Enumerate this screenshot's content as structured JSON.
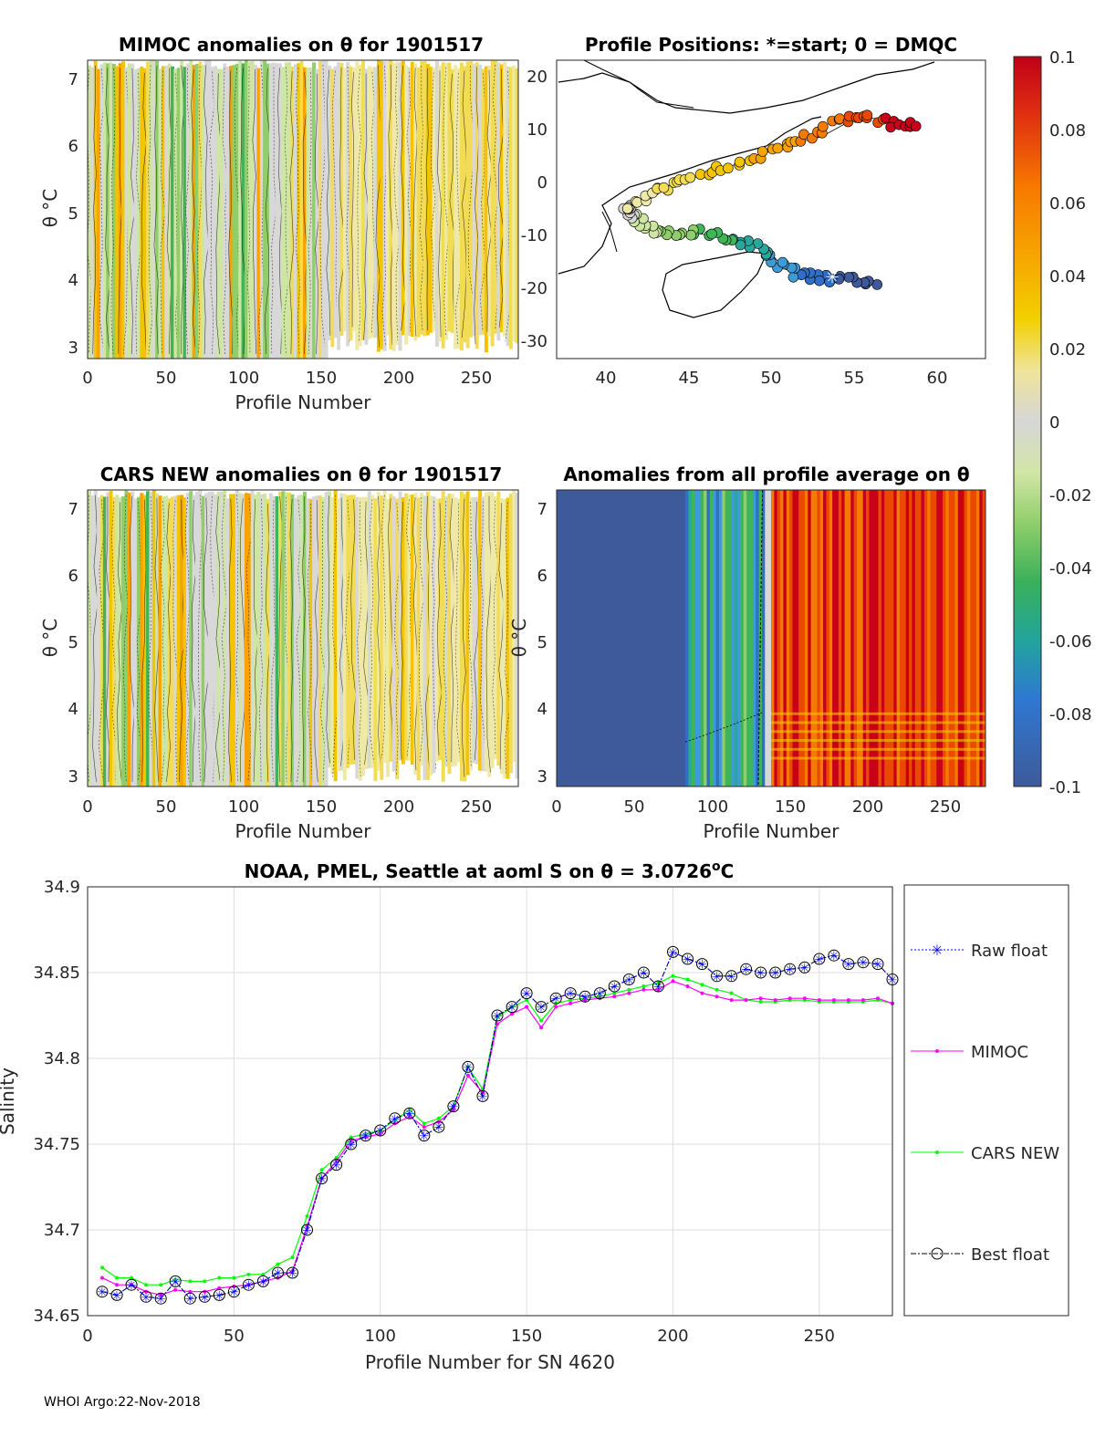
{
  "footer": "WHOI Argo:22-Nov-2018",
  "colors": {
    "raw": "#0000ff",
    "mimoc": "#ff00ff",
    "cars": "#00ff00",
    "best": "#000000",
    "colormap": [
      "#3e5a9a",
      "#2f6fc7",
      "#3d9bd6",
      "#2aa79b",
      "#3fb55a",
      "#8fce6a",
      "#cfe6a3",
      "#d8d8d8",
      "#efe9a8",
      "#f3dc55",
      "#f3c500",
      "#f8a300",
      "#f57a00",
      "#ea4a00",
      "#c8001a"
    ]
  },
  "charts": {
    "mimoc": {
      "title": "MIMOC anomalies on θ  for 1901517",
      "xlabel": "Profile Number",
      "ylabel": "θ °C",
      "xticks": [
        "0",
        "50",
        "100",
        "150",
        "200",
        "250"
      ],
      "yticks": [
        "3",
        "4",
        "5",
        "6",
        "7"
      ]
    },
    "positions": {
      "title": "Profile Positions: *=start; 0 = DMQC",
      "xticks": [
        "40",
        "45",
        "50",
        "55",
        "60"
      ],
      "yticks": [
        "20",
        "10",
        "0",
        "-10",
        "-20",
        "-30"
      ]
    },
    "cars": {
      "title": "CARS NEW anomalies on θ for 1901517",
      "xlabel": "Profile Number",
      "ylabel": "θ °C",
      "xticks": [
        "0",
        "50",
        "100",
        "150",
        "200",
        "250"
      ],
      "yticks": [
        "3",
        "4",
        "5",
        "6",
        "7"
      ]
    },
    "allavg": {
      "title": "Anomalies from all profile average on θ",
      "xlabel": "Profile Number",
      "ylabel": "θ °C",
      "xticks": [
        "0",
        "50",
        "100",
        "150",
        "200",
        "250"
      ],
      "yticks": [
        "3",
        "4",
        "5",
        "6",
        "7"
      ]
    },
    "colorbar": {
      "ticks": [
        "0.1",
        "0.08",
        "0.06",
        "0.04",
        "0.02",
        "0",
        "-0.02",
        "-0.04",
        "-0.06",
        "-0.08",
        "-0.1"
      ]
    }
  },
  "chart_data": {
    "type": "line",
    "title": "NOAA, PMEL, Seattle at aoml S on θ = 3.0726",
    "title_suffix": "o",
    "title_unit": "C",
    "xlabel": "Profile Number for SN 4620",
    "ylabel": "Salinity",
    "xlim": [
      0,
      275
    ],
    "ylim": [
      34.65,
      34.9
    ],
    "xticks": [
      "0",
      "50",
      "100",
      "150",
      "200",
      "250"
    ],
    "yticks": [
      "34.9",
      "34.85",
      "34.8",
      "34.75",
      "34.7",
      "34.65"
    ],
    "legend": [
      "Raw float",
      "MIMOC",
      "CARS NEW",
      "Best float"
    ],
    "legend_position": "right-outside",
    "series": [
      {
        "name": "Raw float / Best float",
        "x": [
          5,
          10,
          15,
          20,
          25,
          30,
          35,
          40,
          45,
          50,
          55,
          60,
          65,
          70,
          75,
          80,
          85,
          90,
          95,
          100,
          105,
          110,
          115,
          120,
          125,
          130,
          135,
          140,
          145,
          150,
          155,
          160,
          165,
          170,
          175,
          180,
          185,
          190,
          195,
          200,
          205,
          210,
          215,
          220,
          225,
          230,
          235,
          240,
          245,
          250,
          255,
          260,
          265,
          270,
          275
        ],
        "values": [
          34.664,
          34.662,
          34.668,
          34.661,
          34.66,
          34.67,
          34.66,
          34.661,
          34.662,
          34.664,
          34.668,
          34.67,
          34.675,
          34.675,
          34.7,
          34.73,
          34.738,
          34.75,
          34.755,
          34.758,
          34.765,
          34.768,
          34.755,
          34.76,
          34.772,
          34.795,
          34.778,
          34.825,
          34.83,
          34.838,
          34.83,
          34.835,
          34.838,
          34.836,
          34.838,
          34.842,
          34.846,
          34.85,
          34.842,
          34.862,
          34.858,
          34.855,
          34.848,
          34.848,
          34.852,
          34.85,
          34.85,
          34.852,
          34.853,
          34.858,
          34.86,
          34.855,
          34.856,
          34.855,
          34.846
        ]
      },
      {
        "name": "MIMOC",
        "x": [
          5,
          10,
          15,
          20,
          25,
          30,
          35,
          40,
          45,
          50,
          55,
          60,
          65,
          70,
          75,
          80,
          85,
          90,
          95,
          100,
          105,
          110,
          115,
          120,
          125,
          130,
          135,
          140,
          145,
          150,
          155,
          160,
          165,
          170,
          175,
          180,
          185,
          190,
          195,
          200,
          205,
          210,
          215,
          220,
          225,
          230,
          235,
          240,
          245,
          250,
          255,
          260,
          265,
          270,
          275
        ],
        "values": [
          34.672,
          34.668,
          34.668,
          34.664,
          34.662,
          34.665,
          34.664,
          34.664,
          34.666,
          34.667,
          34.668,
          34.67,
          34.672,
          34.676,
          34.702,
          34.73,
          34.74,
          34.752,
          34.754,
          34.756,
          34.762,
          34.766,
          34.76,
          34.763,
          34.77,
          34.79,
          34.78,
          34.82,
          34.826,
          34.83,
          34.818,
          34.83,
          34.832,
          34.834,
          34.835,
          34.836,
          34.838,
          34.84,
          34.84,
          34.845,
          34.842,
          34.838,
          34.836,
          34.834,
          34.834,
          34.835,
          34.834,
          34.835,
          34.835,
          34.834,
          34.834,
          34.834,
          34.834,
          34.835,
          34.832
        ]
      },
      {
        "name": "CARS NEW",
        "x": [
          5,
          10,
          15,
          20,
          25,
          30,
          35,
          40,
          45,
          50,
          55,
          60,
          65,
          70,
          75,
          80,
          85,
          90,
          95,
          100,
          105,
          110,
          115,
          120,
          125,
          130,
          135,
          140,
          145,
          150,
          155,
          160,
          165,
          170,
          175,
          180,
          185,
          190,
          195,
          200,
          205,
          210,
          215,
          220,
          225,
          230,
          235,
          240,
          245,
          250,
          255,
          260,
          265,
          270,
          275
        ],
        "values": [
          34.678,
          34.672,
          34.672,
          34.668,
          34.668,
          34.671,
          34.67,
          34.67,
          34.672,
          34.672,
          34.674,
          34.674,
          34.68,
          34.684,
          34.708,
          34.735,
          34.742,
          34.754,
          34.756,
          34.758,
          34.764,
          34.77,
          34.762,
          34.765,
          34.772,
          34.795,
          34.782,
          34.824,
          34.83,
          34.834,
          34.822,
          34.832,
          34.834,
          34.835,
          34.836,
          34.838,
          34.84,
          34.842,
          34.844,
          34.848,
          34.846,
          34.843,
          34.84,
          34.838,
          34.834,
          34.833,
          34.833,
          34.834,
          34.834,
          34.833,
          34.833,
          34.833,
          34.833,
          34.834,
          34.832
        ]
      }
    ]
  }
}
